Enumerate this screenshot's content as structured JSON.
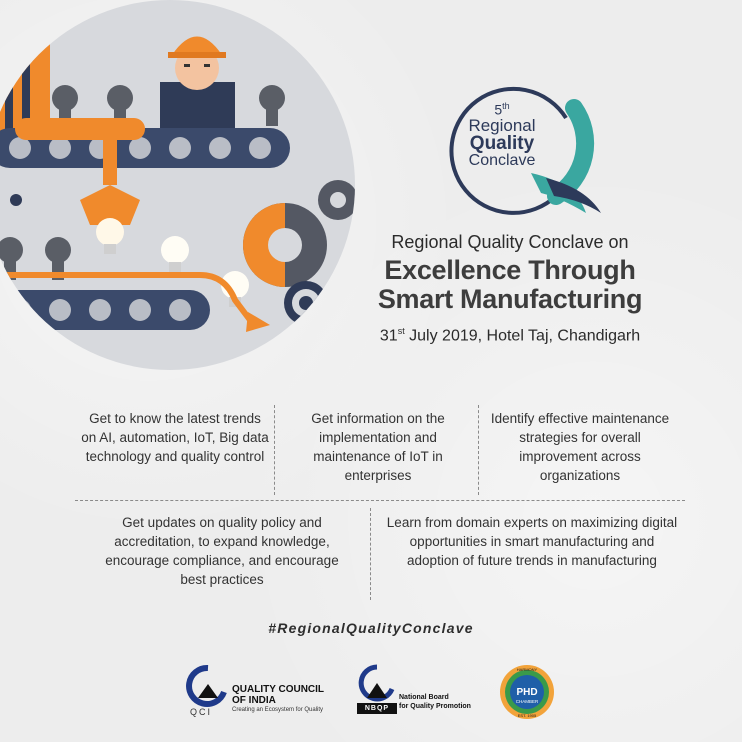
{
  "logo": {
    "edition": "5",
    "edition_suffix": "th",
    "line1": "Regional",
    "line2": "Quality",
    "line3": "Conclave"
  },
  "headline": {
    "subtitle": "Regional Quality Conclave on",
    "title_line1": "Excellence Through",
    "title_line2": "Smart Manufacturing",
    "date_day": "31",
    "date_suffix": "st",
    "date_rest": " July 2019, Hotel Taj, Chandigarh"
  },
  "benefits": [
    "Get to know the latest trends on AI, automation, IoT, Big data technology and quality control",
    "Get information on the implementation and maintenance of IoT in enterprises",
    "Identify effective maintenance strategies for overall improvement across organizations",
    "Get updates on quality policy and accreditation, to expand knowledge, encourage compliance, and encourage best practices",
    "Learn from domain experts on maximizing digital opportunities in smart manufacturing and adoption of future trends in manufacturing"
  ],
  "hashtag": "#RegionalQualityConclave",
  "partners": {
    "qci_name_line1": "QUALITY COUNCIL",
    "qci_name_line2": "OF INDIA",
    "qci_mark": "QCI",
    "qci_tagline": "Creating an Ecosystem for Quality",
    "nbqp_mark": "NBQP",
    "nbqp_line1": "National Board",
    "nbqp_line2": "for Quality Promotion",
    "phd_mark": "PHD",
    "phd_sub": "CHAMBER",
    "phd_ring_top": "HARMONY",
    "phd_ring_bottom": "EST. 1905"
  },
  "colors": {
    "orange": "#f08a2c",
    "navy": "#2d3a5a",
    "teal": "#3aa7a0",
    "conveyor": "#3b4a6b",
    "gear": "#545863"
  },
  "icons": [
    "gear-icon",
    "bulb-icon",
    "worker-icon",
    "conveyor-icon"
  ]
}
